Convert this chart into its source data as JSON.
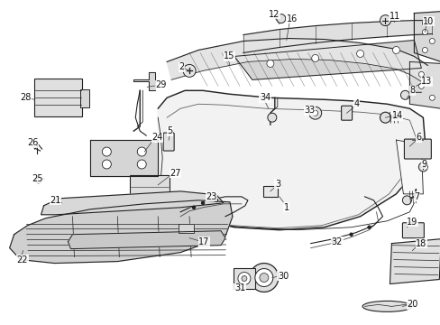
{
  "background_color": "#ffffff",
  "fig_width": 4.89,
  "fig_height": 3.6,
  "dpi": 100,
  "line_color": "#222222",
  "font_size": 7.0,
  "label_color": "#111111"
}
